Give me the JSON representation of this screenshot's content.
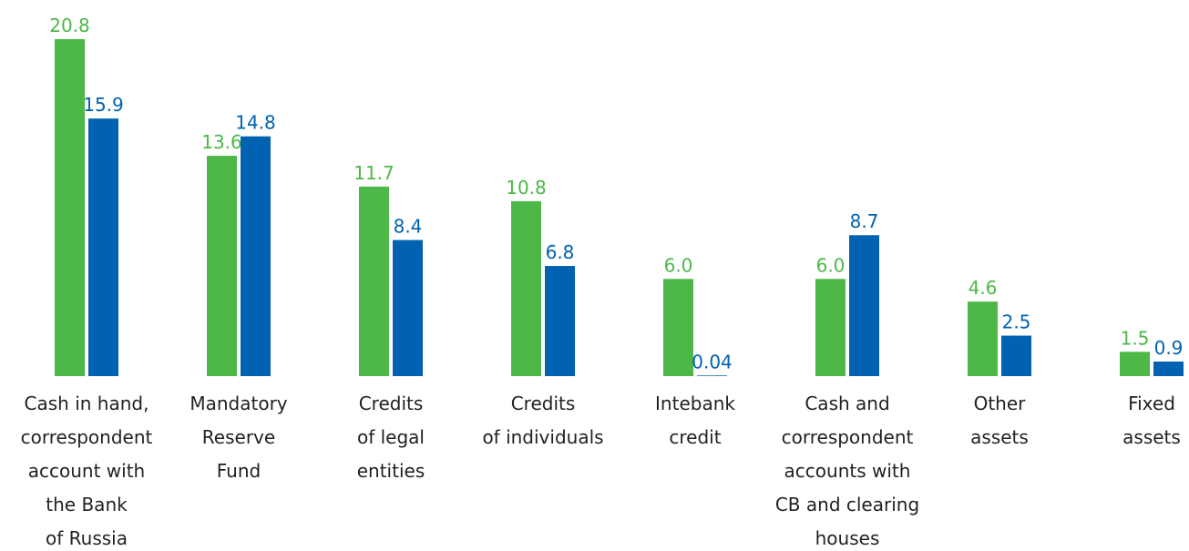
{
  "chart_data": {
    "type": "bar",
    "categories": [
      "Cash in hand,\ncorrespondent\naccount with\nthe Bank\nof Russia",
      "Mandatory\nReserve\nFund",
      "Credits\nof legal\nentities",
      "Credits\nof individuals",
      "Intebank\ncredit",
      "Cash and\ncorrespondent\naccounts with\nCB and clearing\nhouses",
      "Other\nassets",
      "Fixed\nassets"
    ],
    "series": [
      {
        "color": "#4db848",
        "values": [
          20.8,
          13.6,
          11.7,
          10.8,
          6.0,
          6.0,
          4.6,
          1.5
        ],
        "value_labels": [
          "20.8",
          "13.6",
          "11.7",
          "10.8",
          "6.0",
          "6.0",
          "4.6",
          "1.5"
        ]
      },
      {
        "color": "#0062b0",
        "values": [
          15.9,
          14.8,
          8.4,
          6.8,
          0.04,
          8.7,
          2.5,
          0.9
        ],
        "value_labels": [
          "15.9",
          "14.8",
          "8.4",
          "6.8",
          "0.04",
          "8.7",
          "2.5",
          "0.9"
        ]
      }
    ]
  }
}
